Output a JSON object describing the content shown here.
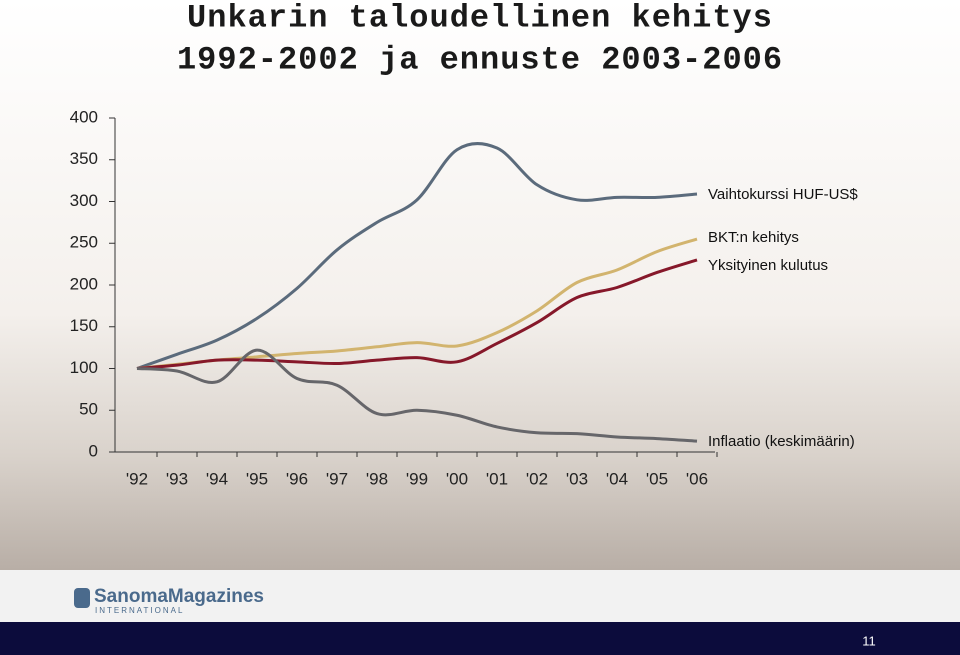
{
  "chart_data": {
    "type": "line",
    "title": "Unkarin taloudellinen kehitys",
    "subtitle": "1992-2002 ja ennuste 2003-2006",
    "categories": [
      "'92",
      "'93",
      "'94",
      "'95",
      "'96",
      "'97",
      "'98",
      "'99",
      "'00",
      "'01",
      "'02",
      "'03",
      "'04",
      "'05",
      "'06"
    ],
    "series": [
      {
        "name": "Vaihtokurssi  HUF-US$",
        "color": "#5b6b7c",
        "values": [
          100,
          117,
          134,
          160,
          196,
          242,
          275,
          302,
          362,
          364,
          320,
          302,
          305,
          305,
          309
        ]
      },
      {
        "name": "BKT:n kehitys",
        "color": "#d2b46e",
        "values": [
          100,
          105,
          110,
          114,
          118,
          121,
          126,
          131,
          127,
          143,
          169,
          203,
          218,
          240,
          255
        ]
      },
      {
        "name": "Yksityinen kulutus",
        "color": "#86182a",
        "values": [
          100,
          104,
          110,
          110,
          108,
          106,
          110,
          113,
          108,
          130,
          155,
          185,
          197,
          215,
          230
        ]
      },
      {
        "name": "Inflaatio (keskimäärin)",
        "color": "#66666a",
        "values": [
          100,
          97,
          84,
          122,
          88,
          80,
          46,
          50,
          44,
          30,
          23,
          22,
          18,
          16,
          13
        ]
      }
    ],
    "ylim": [
      0,
      400
    ],
    "yticks": [
      0,
      50,
      100,
      150,
      200,
      250,
      300,
      350,
      400
    ]
  },
  "footer": {
    "logo": "SanomaMagazines",
    "logo_sub": "INTERNATIONAL",
    "page_number": "11"
  }
}
